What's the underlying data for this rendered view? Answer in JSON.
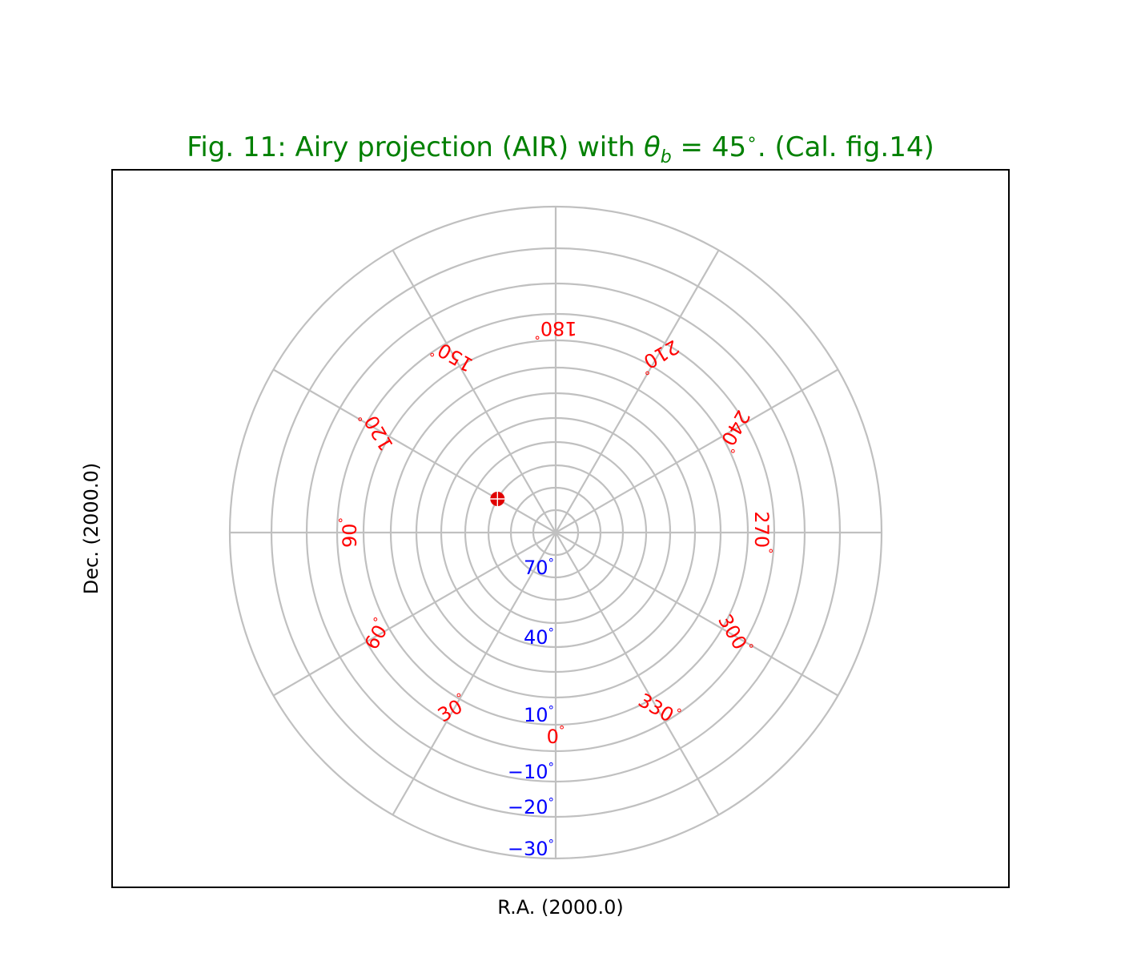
{
  "chart_data": {
    "type": "polar-graticule",
    "title": "Fig. 11: Airy projection (AIR) with θ_b = 45°. (Cal. fig.14)",
    "title_parts": {
      "prefix": "Fig. 11: Airy projection (AIR) with ",
      "theta": "θ",
      "sub": "b",
      "eq": " = 45",
      "deg": "∘",
      "suffix": ". (Cal. fig.14)"
    },
    "xlabel": "R.A. (2000.0)",
    "ylabel": "Dec. (2000.0)",
    "grid": true,
    "projection": "AIR",
    "theta_b": 45,
    "ra_meridians_deg": [
      0,
      30,
      60,
      90,
      120,
      150,
      180,
      210,
      240,
      270,
      300,
      330
    ],
    "dec_parallels_deg": [
      80,
      70,
      60,
      50,
      40,
      30,
      20,
      10,
      0,
      -10,
      -20,
      -30
    ],
    "ra_tick_labels": [
      {
        "value": 0,
        "text": "0",
        "deg": "°"
      },
      {
        "value": 30,
        "text": "30",
        "deg": "°"
      },
      {
        "value": 60,
        "text": "60",
        "deg": "°"
      },
      {
        "value": 90,
        "text": "90",
        "deg": "°"
      },
      {
        "value": 120,
        "text": "120",
        "deg": "°"
      },
      {
        "value": 150,
        "text": "150",
        "deg": "°"
      },
      {
        "value": 180,
        "text": "180",
        "deg": "°"
      },
      {
        "value": 210,
        "text": "210",
        "deg": "°"
      },
      {
        "value": 240,
        "text": "240",
        "deg": "°"
      },
      {
        "value": 270,
        "text": "270",
        "deg": "°"
      },
      {
        "value": 300,
        "text": "300",
        "deg": "°"
      },
      {
        "value": 330,
        "text": "330",
        "deg": "°"
      }
    ],
    "dec_tick_labels": [
      {
        "value": 70,
        "text": "70",
        "deg": "°"
      },
      {
        "value": 40,
        "text": "40",
        "deg": "°"
      },
      {
        "value": 10,
        "text": "10",
        "deg": "°"
      },
      {
        "value": -10,
        "text": "−10",
        "deg": "°"
      },
      {
        "value": -20,
        "text": "−20",
        "deg": "°"
      },
      {
        "value": -30,
        "text": "−30",
        "deg": "°"
      }
    ],
    "marker": {
      "ra_deg": 120,
      "dec_deg": 60,
      "color": "#e00000"
    },
    "colors": {
      "title": "#008000",
      "grid": "#c0c0c0",
      "ra_labels": "#ff0000",
      "dec_labels": "#0000ff",
      "marker": "#e00000",
      "frame": "#000000"
    }
  }
}
